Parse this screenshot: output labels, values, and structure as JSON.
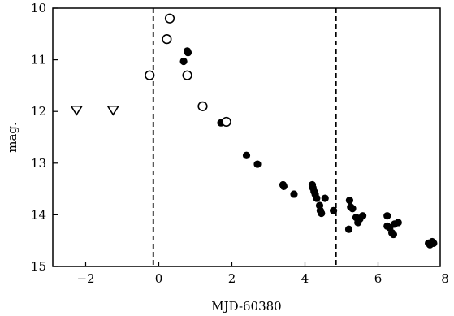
{
  "chart_data": {
    "type": "scatter",
    "title": "",
    "xlabel": "MJD-60380",
    "ylabel": "mag.",
    "xlim": [
      -2.9,
      7.7
    ],
    "ylim": [
      15,
      10
    ],
    "y_inverted": true,
    "x_ticks": [
      -2,
      0,
      2,
      4,
      6,
      8
    ],
    "x_tick_labels": [
      "−2",
      "0",
      "2",
      "4",
      "6",
      "8"
    ],
    "y_ticks": [
      10,
      11,
      12,
      13,
      14,
      15
    ],
    "y_tick_labels": [
      "10",
      "11",
      "12",
      "13",
      "14",
      "15"
    ],
    "vlines": [
      -0.15,
      4.85
    ],
    "grid": false,
    "series": [
      {
        "marker": "filled-circle",
        "color": "#000000",
        "points": [
          [
            0.68,
            11.03
          ],
          [
            0.78,
            10.83
          ],
          [
            0.8,
            10.86
          ],
          [
            1.7,
            12.22
          ],
          [
            2.4,
            12.85
          ],
          [
            2.7,
            13.02
          ],
          [
            3.4,
            13.42
          ],
          [
            3.42,
            13.45
          ],
          [
            3.7,
            13.6
          ],
          [
            4.2,
            13.42
          ],
          [
            4.22,
            13.48
          ],
          [
            4.25,
            13.55
          ],
          [
            4.28,
            13.6
          ],
          [
            4.32,
            13.68
          ],
          [
            4.4,
            13.82
          ],
          [
            4.42,
            13.92
          ],
          [
            4.45,
            13.97
          ],
          [
            4.55,
            13.68
          ],
          [
            4.78,
            13.92
          ],
          [
            5.2,
            14.28
          ],
          [
            5.22,
            13.72
          ],
          [
            5.25,
            13.85
          ],
          [
            5.3,
            13.88
          ],
          [
            5.4,
            14.05
          ],
          [
            5.45,
            14.15
          ],
          [
            5.5,
            14.08
          ],
          [
            5.58,
            14.02
          ],
          [
            6.25,
            14.02
          ],
          [
            6.25,
            14.22
          ],
          [
            6.32,
            14.25
          ],
          [
            6.38,
            14.35
          ],
          [
            6.42,
            14.38
          ],
          [
            6.45,
            14.18
          ],
          [
            6.55,
            14.15
          ],
          [
            7.38,
            14.55
          ],
          [
            7.42,
            14.58
          ],
          [
            7.48,
            14.52
          ],
          [
            7.52,
            14.55
          ]
        ]
      },
      {
        "marker": "open-circle",
        "color": "#000000",
        "points": [
          [
            -0.25,
            11.3
          ],
          [
            0.22,
            10.6
          ],
          [
            0.3,
            10.2
          ],
          [
            0.78,
            11.3
          ],
          [
            1.2,
            11.9
          ],
          [
            1.85,
            12.2
          ]
        ]
      },
      {
        "marker": "open-triangle-down",
        "color": "#000000",
        "points": [
          [
            -2.25,
            11.97
          ],
          [
            -1.25,
            11.97
          ]
        ]
      }
    ]
  }
}
